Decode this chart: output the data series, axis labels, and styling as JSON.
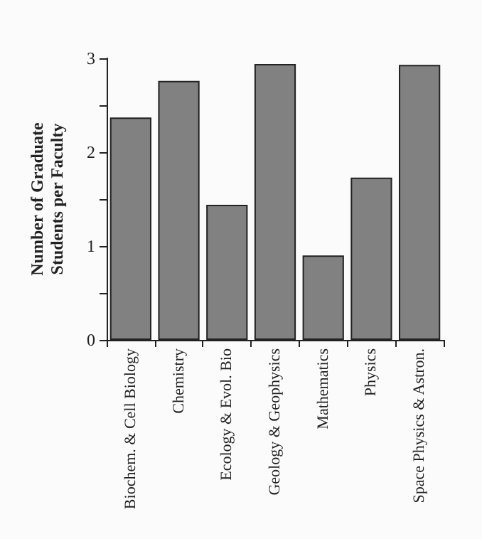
{
  "chart_data": {
    "type": "bar",
    "ylabel": "Number of Graduate\nStudents per Faculty",
    "categories": [
      "Biochem. & Cell Biology",
      "Chemistry",
      "Ecology & Evol. Bio",
      "Geology & Geophysics",
      "Mathematics",
      "Physics",
      "Space Physics & Astron."
    ],
    "values": [
      2.37,
      2.76,
      1.44,
      2.94,
      0.9,
      1.73,
      2.93
    ],
    "color": "#818181",
    "ylim": [
      0,
      3
    ],
    "yticks": [
      0,
      {
        "value": 0.5,
        "label": null
      },
      1,
      {
        "value": 1.5,
        "label": null
      },
      2,
      {
        "value": 2.5,
        "label": null
      },
      3
    ],
    "grid": false
  }
}
